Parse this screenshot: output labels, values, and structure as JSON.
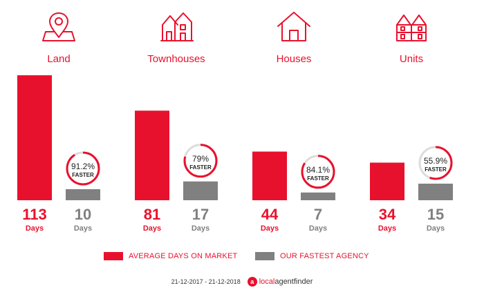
{
  "colors": {
    "primary": "#e8112d",
    "secondary": "#808080",
    "ring_track": "#dcdcdc"
  },
  "chart_data": {
    "type": "bar",
    "categories": [
      "Land",
      "Townhouses",
      "Houses",
      "Units"
    ],
    "icons": [
      "map-pin-icon",
      "townhouse-icon",
      "house-icon",
      "units-icon"
    ],
    "series": [
      {
        "name": "AVERAGE DAYS ON MARKET",
        "values": [
          113,
          81,
          44,
          34
        ]
      },
      {
        "name": "OUR FASTEST AGENCY",
        "values": [
          10,
          17,
          7,
          15
        ]
      }
    ],
    "unit_label": "Days",
    "faster_pct": [
      91.2,
      79,
      84.1,
      55.9
    ],
    "faster_labels": [
      "91.2%",
      "79%",
      "84.1%",
      "55.9%"
    ],
    "faster_text": "FASTER",
    "ylim": [
      0,
      113
    ]
  },
  "legend": {
    "avg_label": "AVERAGE DAYS ON MARKET",
    "fast_label": "OUR FASTEST AGENCY"
  },
  "footer": {
    "date_range": "21-12-2017 - 21-12-2018",
    "brand_icon": "a",
    "brand_part1": "local",
    "brand_part2": "agentfinder"
  }
}
